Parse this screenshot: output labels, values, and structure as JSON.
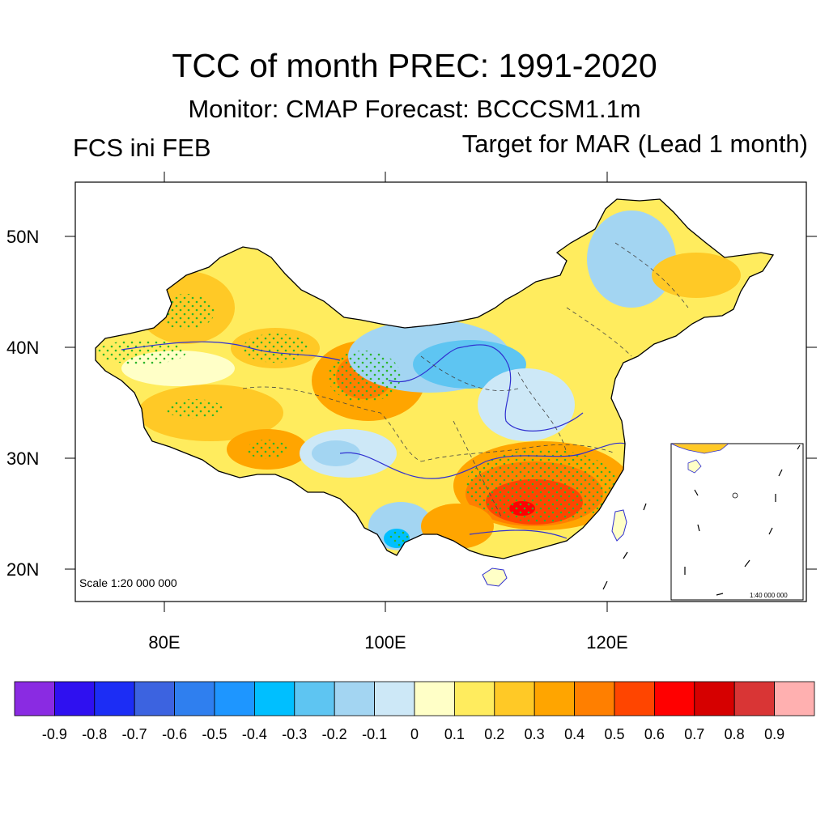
{
  "header": {
    "title": "TCC of month PREC: 1991-2020",
    "subtitle": "Monitor: CMAP   Forecast: BCCCSM1.1m",
    "left_label": "FCS ini FEB",
    "right_label": "Target for MAR (Lead 1 month)"
  },
  "map": {
    "scale_label": "Scale 1:20 000 000",
    "inset_scale_label": "1:40 000 000",
    "lat_labels": [
      "50N",
      "40N",
      "30N",
      "20N"
    ],
    "lon_labels": [
      "80E",
      "100E",
      "120E"
    ],
    "stipple_meaning": "significant",
    "colors": {
      "border": "#000000",
      "river": "#3030d0",
      "stipple": "#2bb52b"
    }
  },
  "colorbar": {
    "colors": [
      "#8a2be2",
      "#2f10f0",
      "#1c2df5",
      "#3c63e0",
      "#2f7fef",
      "#1e96ff",
      "#00bfff",
      "#5ec5f2",
      "#a3d5f2",
      "#cde8f7",
      "#ffffc7",
      "#ffec5e",
      "#ffc926",
      "#ffa500",
      "#ff7f00",
      "#ff4500",
      "#ff0000",
      "#d60000",
      "#d93535",
      "#ffb0b0"
    ],
    "labels": [
      "-0.9",
      "-0.8",
      "-0.7",
      "-0.6",
      "-0.5",
      "-0.4",
      "-0.3",
      "-0.2",
      "-0.1",
      "0",
      "0.1",
      "0.2",
      "0.3",
      "0.4",
      "0.5",
      "0.6",
      "0.7",
      "0.8",
      "0.9"
    ]
  }
}
